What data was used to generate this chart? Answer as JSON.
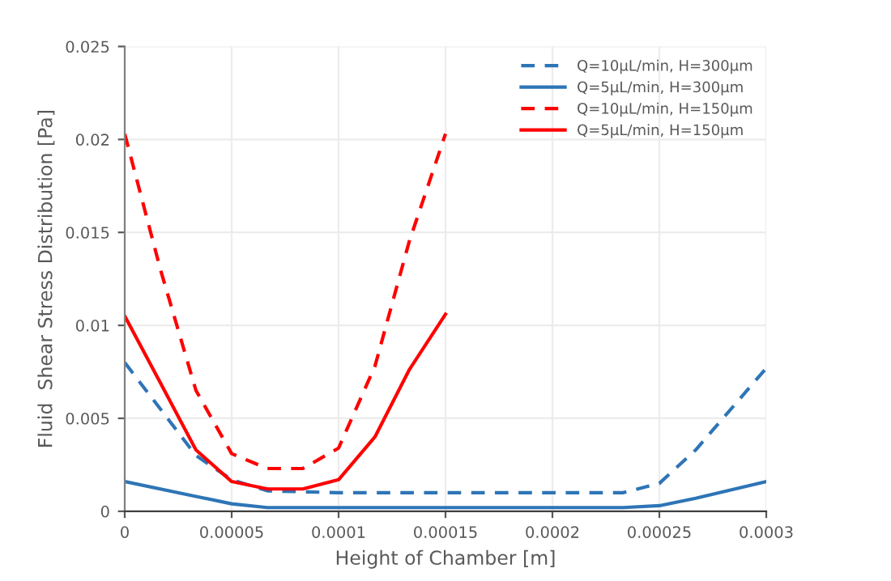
{
  "chart_data": {
    "type": "line",
    "xlabel": "Height of Chamber [m]",
    "ylabel": "Fluid  Shear Stress Distribution [Pa]",
    "xlim": [
      0,
      0.0003
    ],
    "xticks": [
      0,
      {
        "value": 5e-05,
        "label": "0.00005"
      },
      0.0001,
      0.00015,
      0.0002,
      0.00025,
      0.0003
    ],
    "ylim": [
      0,
      0.025
    ],
    "yticks": [
      0,
      0.005,
      0.01,
      0.015,
      0.02,
      0.025
    ],
    "grid": true,
    "legend": "top right",
    "marker": "none",
    "series": [
      {
        "name": "Q=10μL/min, H=300μm",
        "color": "#2e75b6",
        "line_style": "dashed",
        "x": [
          0,
          3.33e-05,
          5e-05,
          6.67e-05,
          0.0001,
          0.000133,
          0.000167,
          0.0002,
          0.000233,
          0.00025,
          0.000267,
          0.0003
        ],
        "values": [
          0.008,
          0.003,
          0.0017,
          0.0011,
          0.001,
          0.001,
          0.001,
          0.001,
          0.001,
          0.0015,
          0.0033,
          0.0077
        ]
      },
      {
        "name": "Q=5μL/min, H=300μm",
        "color": "#2e75b6",
        "line_style": "solid",
        "x": [
          0,
          3.33e-05,
          5e-05,
          6.67e-05,
          0.0001,
          0.000133,
          0.000167,
          0.0002,
          0.000233,
          0.00025,
          0.000267,
          0.0003
        ],
        "values": [
          0.0016,
          0.0008,
          0.0004,
          0.0002,
          0.0002,
          0.0002,
          0.0002,
          0.0002,
          0.0002,
          0.0003,
          0.0007,
          0.0016
        ]
      },
      {
        "name": "Q=10μL/min, H=150μm",
        "color": "#ff0000",
        "line_style": "dashed",
        "x": [
          0,
          1.67e-05,
          3.33e-05,
          5e-05,
          6.67e-05,
          8.33e-05,
          0.0001,
          0.000117,
          0.000133,
          0.00015
        ],
        "values": [
          0.0203,
          0.013,
          0.0065,
          0.0031,
          0.0023,
          0.0023,
          0.0034,
          0.0078,
          0.0145,
          0.0203
        ]
      },
      {
        "name": "Q=5μL/min, H=150μm",
        "color": "#ff0000",
        "line_style": "solid",
        "x": [
          0,
          1.67e-05,
          3.33e-05,
          5e-05,
          6.67e-05,
          8.33e-05,
          0.0001,
          0.000117,
          0.000133,
          0.00015
        ],
        "values": [
          0.0105,
          0.0069,
          0.0033,
          0.0016,
          0.0012,
          0.0012,
          0.0017,
          0.004,
          0.0076,
          0.0106
        ]
      }
    ]
  }
}
